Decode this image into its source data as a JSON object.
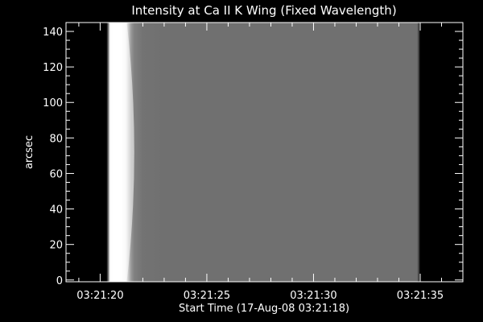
{
  "chart_data": {
    "type": "heatmap",
    "title": "Intensity at Ca II K Wing (Fixed Wavelength)",
    "xlabel": "Start Time (17-Aug-08 03:21:18)",
    "ylabel": "arcsec",
    "x_unit": "seconds after 03:21:18",
    "xlim": [
      0.4,
      19.0
    ],
    "ylim": [
      -1,
      145
    ],
    "x_ticks": [
      {
        "value": 2,
        "label": "03:21:20"
      },
      {
        "value": 7,
        "label": "03:21:25"
      },
      {
        "value": 12,
        "label": "03:21:30"
      },
      {
        "value": 17,
        "label": "03:21:35"
      }
    ],
    "x_minor_step": 1,
    "y_ticks": [
      0,
      20,
      40,
      60,
      80,
      100,
      120,
      140
    ],
    "y_minor_step": 5,
    "intensity_profile": {
      "x": [
        0.4,
        2.3,
        2.4,
        2.45,
        2.6,
        3.0,
        3.2,
        3.3,
        3.45,
        3.6,
        4.0,
        5.0,
        10.0,
        16.85,
        16.92,
        17.0,
        19.0
      ],
      "value": [
        0.0,
        0.0,
        0.55,
        0.97,
        1.0,
        1.0,
        0.95,
        0.82,
        0.6,
        0.5,
        0.45,
        0.44,
        0.44,
        0.44,
        0.3,
        0.0,
        0.0
      ]
    },
    "colormap": "grayscale",
    "grid": false
  }
}
